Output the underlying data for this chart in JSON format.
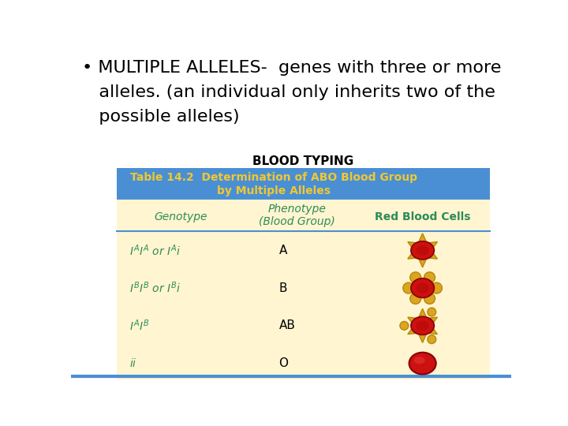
{
  "title_line1": "• MULTIPLE ALLELES-  genes with three or more",
  "title_line2": "   alleles. (an individual only inherits two of the",
  "title_line3": "   possible alleles)",
  "blood_typing_label": "BLOOD TYPING",
  "table_title_1": "Table 14.2  Determination of ABO Blood Group",
  "table_title_2": "by Multiple Alleles",
  "col_header_0": "Genotype",
  "col_header_1": "Phenotype",
  "col_header_1b": "(Blood Group)",
  "col_header_2": "Red Blood Cells",
  "rows": [
    {
      "genotype": "$I^AI^A$ or $I^Ai$",
      "phenotype": "A",
      "cell_type": "star_red"
    },
    {
      "genotype": "$I^BI^B$ or $I^Bi$",
      "phenotype": "B",
      "cell_type": "circle_red_gold"
    },
    {
      "genotype": "$I^AI^B$",
      "phenotype": "AB",
      "cell_type": "star_gold_circles"
    },
    {
      "genotype": "$ii$",
      "phenotype": "O",
      "cell_type": "circle_red_plain"
    }
  ],
  "bg_color": "#FFFFFF",
  "table_header_bg": "#4A8FD4",
  "table_header_text": "#F0C830",
  "table_body_bg": "#FFF5D0",
  "table_body_text": "#2E8B57",
  "col_header_text": "#2E8B57",
  "sep_line_color": "#4A8FD4",
  "bottom_line_color": "#4A8FD4",
  "cell_red": "#CC1111",
  "cell_gold": "#DAA520",
  "cell_outline_dark": "#8B0000",
  "cell_gold_outline": "#B8860B"
}
